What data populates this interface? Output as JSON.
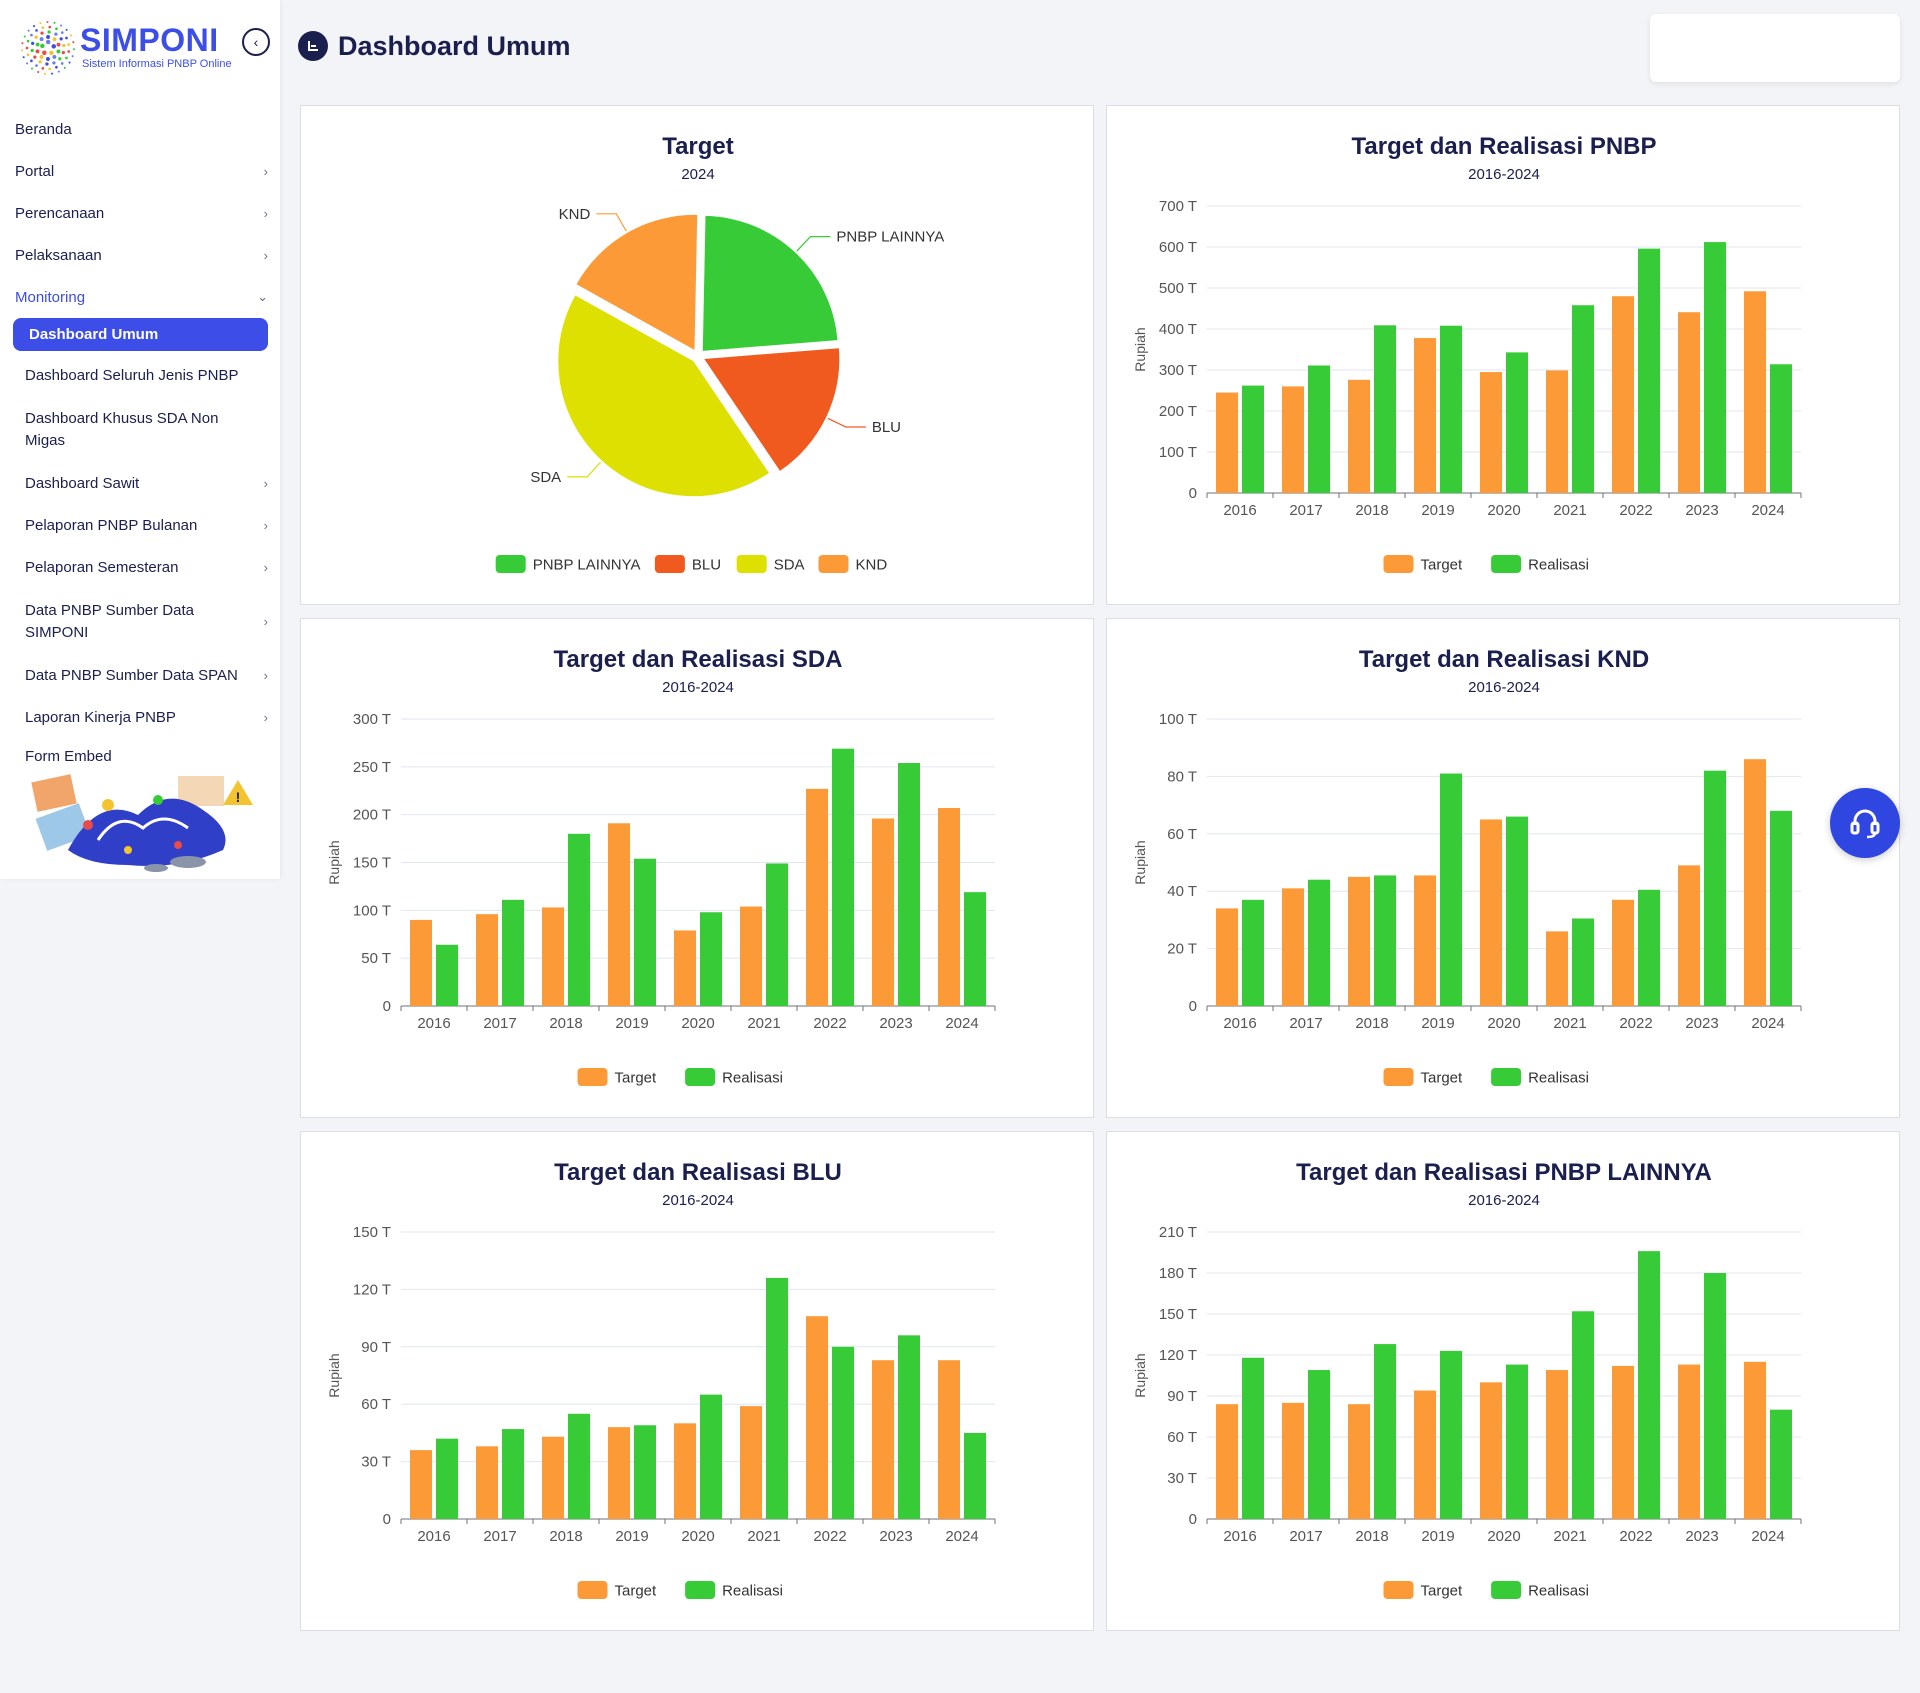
{
  "app": {
    "name": "SIMPONI",
    "subtitle": "Sistem Informasi PNBP Online"
  },
  "page": {
    "title": "Dashboard Umum"
  },
  "sidebar": {
    "items": [
      {
        "label": "Beranda",
        "chevron": false
      },
      {
        "label": "Portal",
        "chevron": true
      },
      {
        "label": "Perencanaan",
        "chevron": true
      },
      {
        "label": "Pelaksanaan",
        "chevron": true
      },
      {
        "label": "Monitoring",
        "chevron": true,
        "expanded": true
      }
    ],
    "monitoring_children": [
      {
        "label": "Dashboard Umum",
        "active": true,
        "chevron": false
      },
      {
        "label": "Dashboard Seluruh Jenis PNBP",
        "chevron": false
      },
      {
        "label": "Dashboard Khusus SDA Non Migas",
        "chevron": false
      },
      {
        "label": "Dashboard Sawit",
        "chevron": true
      },
      {
        "label": "Pelaporan PNBP Bulanan",
        "chevron": true
      },
      {
        "label": "Pelaporan Semesteran",
        "chevron": true
      },
      {
        "label": "Data PNBP Sumber Data SIMPONI",
        "chevron": true
      },
      {
        "label": "Data PNBP Sumber Data SPAN",
        "chevron": true
      },
      {
        "label": "Laporan Kinerja PNBP",
        "chevron": true
      },
      {
        "label": "Form Embed",
        "chevron": false
      }
    ]
  },
  "colors": {
    "target": "#fd9a38",
    "realisasi": "#37cc37",
    "pnbp_lainnya": "#37cc37",
    "blu": "#f05a1e",
    "sda": "#dde000",
    "knd": "#fd9a38",
    "accent": "#3d4ee8"
  },
  "chart_data": [
    {
      "type": "pie",
      "title": "Target",
      "subtitle": "2024",
      "slices": [
        {
          "name": "PNBP LAINNYA",
          "value": 22.0
        },
        {
          "name": "BLU",
          "value": 15.8
        },
        {
          "name": "SDA",
          "value": 40.0
        },
        {
          "name": "KND",
          "value": 16.2
        }
      ],
      "legend": "bottom"
    },
    {
      "type": "bar",
      "title": "Target dan Realisasi PNBP",
      "subtitle": "2016-2024",
      "ylabel": "Rupiah",
      "ylim": [
        0,
        700
      ],
      "ytick_step": 100,
      "yticks": [
        "0",
        "100 T",
        "200 T",
        "300 T",
        "400 T",
        "500 T",
        "600 T",
        "700 T"
      ],
      "categories": [
        "2016",
        "2017",
        "2018",
        "2019",
        "2020",
        "2021",
        "2022",
        "2023",
        "2024"
      ],
      "series": [
        {
          "name": "Target",
          "values": [
            245,
            260,
            276,
            378,
            295,
            299,
            480,
            441,
            492
          ]
        },
        {
          "name": "Realisasi",
          "values": [
            262,
            311,
            409,
            408,
            343,
            458,
            596,
            612,
            314
          ]
        }
      ],
      "legend": "bottom"
    },
    {
      "type": "bar",
      "title": "Target dan Realisasi SDA",
      "subtitle": "2016-2024",
      "ylabel": "Rupiah",
      "ylim": [
        0,
        300
      ],
      "ytick_step": 50,
      "yticks": [
        "0",
        "50 T",
        "100 T",
        "150 T",
        "200 T",
        "250 T",
        "300 T"
      ],
      "categories": [
        "2016",
        "2017",
        "2018",
        "2019",
        "2020",
        "2021",
        "2022",
        "2023",
        "2024"
      ],
      "series": [
        {
          "name": "Target",
          "values": [
            90,
            96,
            103,
            191,
            79,
            104,
            227,
            196,
            207
          ]
        },
        {
          "name": "Realisasi",
          "values": [
            64,
            111,
            180,
            154,
            98,
            149,
            269,
            254,
            119
          ]
        }
      ],
      "legend": "bottom"
    },
    {
      "type": "bar",
      "title": "Target dan Realisasi KND",
      "subtitle": "2016-2024",
      "ylabel": "Rupiah",
      "ylim": [
        0,
        100
      ],
      "ytick_step": 20,
      "yticks": [
        "0",
        "20 T",
        "40 T",
        "60 T",
        "80 T",
        "100 T"
      ],
      "categories": [
        "2016",
        "2017",
        "2018",
        "2019",
        "2020",
        "2021",
        "2022",
        "2023",
        "2024"
      ],
      "series": [
        {
          "name": "Target",
          "values": [
            34,
            41,
            45,
            45.5,
            65,
            26,
            37,
            49,
            86
          ]
        },
        {
          "name": "Realisasi",
          "values": [
            37,
            44,
            45.5,
            81,
            66,
            30.5,
            40.5,
            82,
            68
          ]
        }
      ],
      "legend": "bottom"
    },
    {
      "type": "bar",
      "title": "Target dan Realisasi BLU",
      "subtitle": "2016-2024",
      "ylabel": "Rupiah",
      "ylim": [
        0,
        150
      ],
      "ytick_step": 30,
      "yticks": [
        "0",
        "30 T",
        "60 T",
        "90 T",
        "120 T",
        "150 T"
      ],
      "categories": [
        "2016",
        "2017",
        "2018",
        "2019",
        "2020",
        "2021",
        "2022",
        "2023",
        "2024"
      ],
      "series": [
        {
          "name": "Target",
          "values": [
            36,
            38,
            43,
            48,
            50,
            59,
            106,
            83,
            83
          ]
        },
        {
          "name": "Realisasi",
          "values": [
            42,
            47,
            55,
            49,
            65,
            126,
            90,
            96,
            45
          ]
        }
      ],
      "legend": "bottom"
    },
    {
      "type": "bar",
      "title": "Target dan Realisasi PNBP LAINNYA",
      "subtitle": "2016-2024",
      "ylabel": "Rupiah",
      "ylim": [
        0,
        210
      ],
      "ytick_step": 30,
      "yticks": [
        "0",
        "30 T",
        "60 T",
        "90 T",
        "120 T",
        "150 T",
        "180 T",
        "210 T"
      ],
      "categories": [
        "2016",
        "2017",
        "2018",
        "2019",
        "2020",
        "2021",
        "2022",
        "2023",
        "2024"
      ],
      "series": [
        {
          "name": "Target",
          "values": [
            84,
            85,
            84,
            94,
            100,
            109,
            112,
            113,
            115
          ]
        },
        {
          "name": "Realisasi",
          "values": [
            118,
            109,
            128,
            123,
            113,
            152,
            196,
            180,
            80
          ]
        }
      ],
      "legend": "bottom"
    }
  ]
}
